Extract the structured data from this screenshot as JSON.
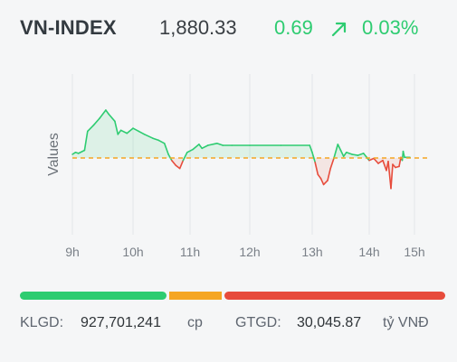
{
  "header": {
    "index_name": "VN-INDEX",
    "value": "1,880.33",
    "change": "0.69",
    "arrow_icon": "arrow-up-right-icon",
    "change_pct": "0.03%"
  },
  "colors": {
    "up": "#2ecc71",
    "down": "#e74c3c",
    "reference": "#f5a623",
    "neutral_text": "#3a3f44",
    "background": "#f5f6f7",
    "grid": "#e3e6ea"
  },
  "chart_data": {
    "type": "area",
    "ylabel": "Values",
    "xlabel": "",
    "x_ticks": [
      "9h",
      "10h",
      "11h",
      "12h",
      "13h",
      "14h",
      "15h"
    ],
    "reference_value": 1879.64,
    "ylim": [
      1872,
      1888
    ],
    "grid": true,
    "legend": "none",
    "series": [
      {
        "values": [
          [
            9.0,
            1880.0
          ],
          [
            9.05,
            1880.2
          ],
          [
            9.1,
            1880.1
          ],
          [
            9.2,
            1880.4
          ],
          [
            9.25,
            1882.3
          ],
          [
            9.35,
            1882.9
          ],
          [
            9.45,
            1883.6
          ],
          [
            9.55,
            1884.4
          ],
          [
            9.6,
            1884.0
          ],
          [
            9.7,
            1883.3
          ],
          [
            9.75,
            1882.0
          ],
          [
            9.8,
            1882.4
          ],
          [
            9.9,
            1882.1
          ],
          [
            10.0,
            1882.6
          ],
          [
            10.1,
            1882.3
          ],
          [
            10.2,
            1882.0
          ],
          [
            10.35,
            1881.6
          ],
          [
            10.45,
            1881.4
          ],
          [
            10.55,
            1881.1
          ],
          [
            10.62,
            1880.0
          ],
          [
            10.68,
            1879.4
          ],
          [
            10.75,
            1878.9
          ],
          [
            10.82,
            1878.6
          ],
          [
            10.88,
            1879.4
          ],
          [
            10.95,
            1880.2
          ],
          [
            11.05,
            1880.5
          ],
          [
            11.15,
            1881.0
          ],
          [
            11.2,
            1880.6
          ],
          [
            11.3,
            1880.9
          ],
          [
            11.45,
            1881.1
          ],
          [
            11.55,
            1880.9
          ],
          [
            11.7,
            1880.9
          ],
          [
            12.0,
            1880.9
          ],
          [
            12.5,
            1880.9
          ],
          [
            12.96,
            1880.9
          ],
          [
            13.0,
            1880.2
          ],
          [
            13.05,
            1879.2
          ],
          [
            13.1,
            1878.0
          ],
          [
            13.15,
            1877.6
          ],
          [
            13.2,
            1877.0
          ],
          [
            13.27,
            1877.4
          ],
          [
            13.32,
            1878.6
          ],
          [
            13.38,
            1879.6
          ],
          [
            13.45,
            1881.0
          ],
          [
            13.5,
            1880.4
          ],
          [
            13.55,
            1879.8
          ],
          [
            13.6,
            1880.2
          ],
          [
            13.7,
            1880.0
          ],
          [
            13.8,
            1879.9
          ],
          [
            13.9,
            1880.1
          ],
          [
            14.0,
            1879.4
          ],
          [
            14.1,
            1879.6
          ],
          [
            14.2,
            1879.1
          ],
          [
            14.3,
            1879.4
          ],
          [
            14.38,
            1878.4
          ],
          [
            14.42,
            1879.3
          ],
          [
            14.48,
            1876.6
          ],
          [
            14.52,
            1879.0
          ],
          [
            14.58,
            1878.7
          ],
          [
            14.66,
            1878.8
          ],
          [
            14.7,
            1879.7
          ],
          [
            14.73,
            1879.4
          ],
          [
            14.75,
            1880.3
          ],
          [
            14.78,
            1879.7
          ],
          [
            14.85,
            1879.7
          ],
          [
            14.9,
            1879.7
          ]
        ]
      }
    ]
  },
  "breadth_bar": {
    "advancing_fraction": 0.35,
    "unchanged_fraction": 0.13,
    "declining_fraction": 0.52
  },
  "footer": {
    "klgd_label": "KLGD:",
    "klgd_value": "927,701,241",
    "klgd_unit": "cp",
    "gtgd_label": "GTGD:",
    "gtgd_value": "30,045.87",
    "gtgd_unit": "tỷ VNĐ"
  }
}
